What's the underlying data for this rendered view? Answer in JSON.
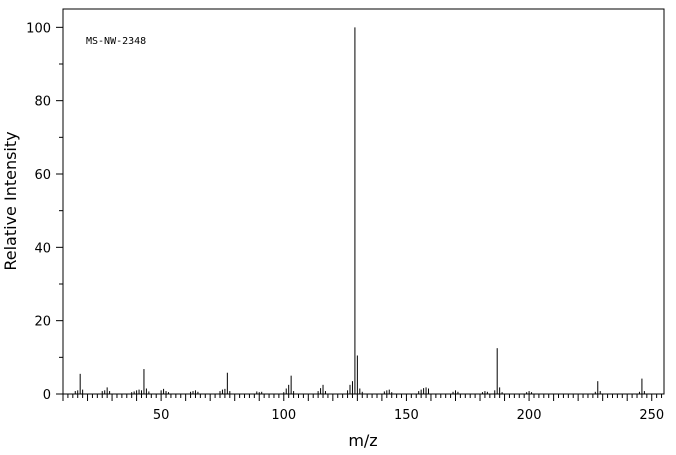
{
  "chart_data": {
    "type": "bar",
    "subtype": "mass-spectrum",
    "sample_label": "MS-NW-2348",
    "xlabel": "m/z",
    "ylabel": "Relative Intensity",
    "xlim": [
      10,
      255
    ],
    "ylim": [
      0,
      105
    ],
    "x_ticks": [
      50,
      100,
      150,
      200,
      250
    ],
    "y_ticks": [
      0,
      20,
      40,
      60,
      80,
      100
    ],
    "grid": false,
    "legend": "none",
    "peaks": {
      "mz": [
        15,
        16,
        17,
        18,
        26,
        27,
        28,
        29,
        38,
        39,
        40,
        41,
        42,
        43,
        44,
        45,
        50,
        51,
        52,
        53,
        62,
        63,
        64,
        65,
        74,
        75,
        76,
        77,
        78,
        89,
        90,
        91,
        100,
        101,
        102,
        103,
        104,
        114,
        115,
        116,
        117,
        126,
        127,
        128,
        129,
        130,
        131,
        132,
        141,
        142,
        143,
        144,
        155,
        156,
        157,
        158,
        159,
        169,
        170,
        171,
        181,
        182,
        183,
        186,
        187,
        188,
        189,
        199,
        200,
        201,
        227,
        228,
        229,
        245,
        246,
        247
      ],
      "intensity": [
        0.8,
        1.0,
        5.5,
        1.2,
        0.8,
        1.0,
        1.8,
        0.8,
        0.5,
        0.7,
        1.0,
        1.2,
        1.0,
        6.8,
        1.5,
        0.7,
        1.0,
        1.4,
        0.8,
        0.5,
        0.6,
        0.8,
        1.0,
        0.6,
        0.8,
        1.2,
        1.4,
        5.8,
        0.8,
        0.7,
        0.5,
        0.6,
        0.5,
        1.5,
        2.5,
        5.0,
        0.8,
        0.8,
        1.6,
        2.5,
        0.8,
        1.0,
        2.5,
        3.5,
        100.0,
        10.5,
        1.5,
        0.6,
        0.7,
        1.0,
        1.2,
        0.5,
        0.8,
        1.2,
        1.6,
        1.8,
        1.5,
        0.6,
        1.0,
        0.6,
        0.5,
        0.8,
        0.6,
        1.0,
        12.5,
        1.8,
        0.5,
        0.5,
        0.8,
        0.5,
        0.6,
        3.5,
        0.8,
        0.6,
        4.2,
        0.8
      ]
    }
  }
}
